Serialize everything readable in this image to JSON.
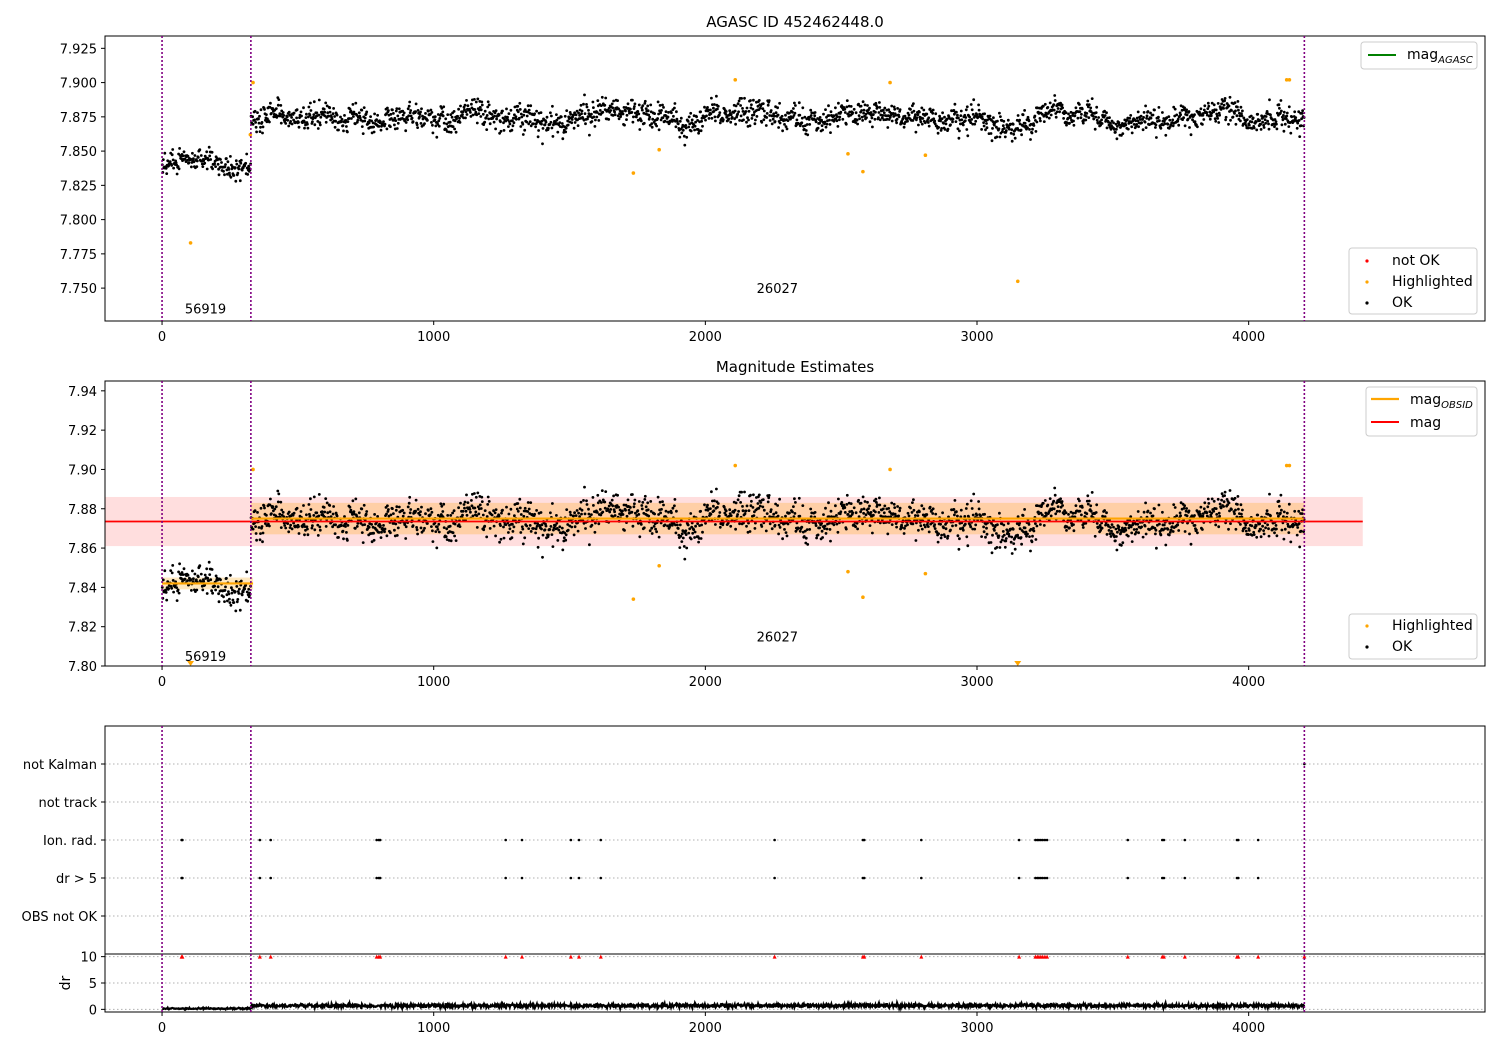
{
  "colors": {
    "ok": "#000000",
    "highlighted": "#ffa500",
    "not_ok": "#ff0000",
    "mag_agasc_line": "#008000",
    "mag_obsid_line": "#ffa500",
    "mag_line": "#ff0000",
    "obsid_boundary": "#800080",
    "grid": "#b0b0b0"
  },
  "chart_data": [
    {
      "type": "scatter",
      "title": "AGASC ID 452462448.0",
      "xlabel": "",
      "ylabel": "",
      "xlim": [
        -210,
        4870
      ],
      "ylim": [
        7.726,
        7.934
      ],
      "xticks": [
        0,
        1000,
        2000,
        3000,
        4000
      ],
      "yticks": [
        7.75,
        7.775,
        7.8,
        7.825,
        7.85,
        7.875,
        7.9,
        7.925
      ],
      "ytick_labels": [
        "7.750",
        "7.775",
        "7.800",
        "7.825",
        "7.850",
        "7.875",
        "7.900",
        "7.925"
      ],
      "obsid_boundaries": [
        0,
        327,
        4205
      ],
      "obsid_labels": [
        {
          "text": "56919",
          "x": 160,
          "y": 7.735
        },
        {
          "text": "26027",
          "x": 2265,
          "y": 7.75
        }
      ],
      "legend_top": {
        "position": "top-right",
        "entries": [
          {
            "label_main": "mag",
            "label_sub": "AGASC",
            "style": "line",
            "color": "#008000"
          }
        ]
      },
      "legend_bottom": {
        "position": "bottom-right",
        "entries": [
          {
            "label": "not OK",
            "style": "dot",
            "color": "#ff0000"
          },
          {
            "label": "Highlighted",
            "style": "dot",
            "color": "#ffa500"
          },
          {
            "label": "OK",
            "style": "dot",
            "color": "#000000"
          }
        ]
      },
      "ok_segments": [
        {
          "x0": 0,
          "x1": 327,
          "center": 7.842,
          "spread": 0.007
        },
        {
          "x0": 327,
          "x1": 4205,
          "center": 7.875,
          "spread": 0.008
        }
      ],
      "highlighted_points": [
        {
          "x": 105,
          "y": 7.783
        },
        {
          "x": 325,
          "y": 7.862
        },
        {
          "x": 335,
          "y": 7.9
        },
        {
          "x": 1735,
          "y": 7.834
        },
        {
          "x": 1830,
          "y": 7.851
        },
        {
          "x": 2110,
          "y": 7.902
        },
        {
          "x": 2525,
          "y": 7.848
        },
        {
          "x": 2580,
          "y": 7.835
        },
        {
          "x": 2680,
          "y": 7.9
        },
        {
          "x": 2810,
          "y": 7.847
        },
        {
          "x": 3150,
          "y": 7.755
        },
        {
          "x": 4140,
          "y": 7.902
        },
        {
          "x": 4150,
          "y": 7.902
        }
      ]
    },
    {
      "type": "scatter",
      "title": "Magnitude Estimates",
      "xlabel": "",
      "ylabel": "",
      "xlim": [
        -210,
        4870
      ],
      "ylim": [
        7.8,
        7.945
      ],
      "xticks": [
        0,
        1000,
        2000,
        3000,
        4000
      ],
      "yticks": [
        7.8,
        7.82,
        7.84,
        7.86,
        7.88,
        7.9,
        7.92,
        7.94
      ],
      "ytick_labels": [
        "7.80",
        "7.82",
        "7.84",
        "7.86",
        "7.88",
        "7.90",
        "7.92",
        "7.94"
      ],
      "obsid_boundaries": [
        0,
        327,
        4205
      ],
      "obsid_labels": [
        {
          "text": "56919",
          "x": 160,
          "y": 7.805
        },
        {
          "text": "26027",
          "x": 2265,
          "y": 7.815
        }
      ],
      "legend_top": {
        "position": "top-right",
        "entries": [
          {
            "label_main": "mag",
            "label_sub": "OBSID",
            "style": "line",
            "color": "#ffa500"
          },
          {
            "label_main": "mag",
            "label_sub": "",
            "style": "line",
            "color": "#ff0000"
          }
        ]
      },
      "legend_bottom": {
        "position": "bottom-right",
        "entries": [
          {
            "label": "Highlighted",
            "style": "dot",
            "color": "#ffa500"
          },
          {
            "label": "OK",
            "style": "dot",
            "color": "#000000"
          }
        ]
      },
      "mag": {
        "value": 7.8735,
        "band": [
          7.861,
          7.886
        ],
        "x0": -210,
        "x1": 4420
      },
      "mag_obsid": [
        {
          "x0": 0,
          "x1": 335,
          "value": 7.842,
          "band": [
            7.839,
            7.845
          ]
        },
        {
          "x0": 327,
          "x1": 4205,
          "value": 7.875,
          "band": [
            7.867,
            7.883
          ]
        }
      ],
      "ok_segments": [
        {
          "x0": 0,
          "x1": 327,
          "center": 7.842,
          "spread": 0.007
        },
        {
          "x0": 327,
          "x1": 4205,
          "center": 7.875,
          "spread": 0.008
        }
      ],
      "highlighted_points": [
        {
          "x": 335,
          "y": 7.9
        },
        {
          "x": 1735,
          "y": 7.834
        },
        {
          "x": 1830,
          "y": 7.851
        },
        {
          "x": 2110,
          "y": 7.902
        },
        {
          "x": 2525,
          "y": 7.848
        },
        {
          "x": 2580,
          "y": 7.835
        },
        {
          "x": 2680,
          "y": 7.9
        },
        {
          "x": 2810,
          "y": 7.847
        },
        {
          "x": 4140,
          "y": 7.902
        },
        {
          "x": 4150,
          "y": 7.902
        }
      ],
      "below_axis_markers": [
        {
          "x": 105
        },
        {
          "x": 3150
        }
      ]
    },
    {
      "type": "scatter",
      "title": "",
      "xlabel": "",
      "ylabel": "",
      "xlim": [
        -210,
        4870
      ],
      "categories": [
        "not Kalman",
        "not track",
        "Ion. rad.",
        "dr > 5",
        "OBS not OK"
      ],
      "obsid_boundaries": [
        0,
        327,
        4205
      ],
      "flag_events": {
        "not Kalman": [
          4205
        ],
        "not track": [],
        "Ion. rad.": [
          72,
          75,
          360,
          400,
          790,
          798,
          803,
          1265,
          1325,
          1505,
          1535,
          1615,
          2255,
          2580,
          2585,
          2795,
          3155,
          3215,
          3222,
          3228,
          3235,
          3242,
          3250,
          3258,
          3555,
          3682,
          3688,
          3765,
          3957,
          3962,
          4035
        ],
        "dr > 5": [
          72,
          75,
          360,
          400,
          790,
          798,
          803,
          1265,
          1325,
          1505,
          1535,
          1615,
          2255,
          2580,
          2585,
          2795,
          3155,
          3215,
          3222,
          3228,
          3235,
          3242,
          3250,
          3258,
          3555,
          3682,
          3688,
          3765,
          3957,
          3962,
          4035
        ]
      }
    },
    {
      "type": "line",
      "title": "",
      "xlabel": "",
      "ylabel": "dr",
      "xlim": [
        -210,
        4870
      ],
      "ylim": [
        -0.5,
        10.5
      ],
      "yticks": [
        0,
        5,
        10
      ],
      "ytick_labels": [
        "0",
        "5",
        "10"
      ],
      "xticks": [
        0,
        1000,
        2000,
        3000,
        4000
      ],
      "obsid_boundaries": [
        0,
        327,
        4205
      ],
      "dr_level_segments": [
        {
          "x0": 0,
          "x1": 327,
          "mean": 0.15,
          "spread": 0.12
        },
        {
          "x0": 327,
          "x1": 4205,
          "mean": 0.7,
          "spread": 0.3
        }
      ],
      "clipped_markers_at": 10,
      "clipped_x": [
        72,
        75,
        360,
        400,
        790,
        798,
        803,
        1265,
        1325,
        1505,
        1535,
        1615,
        2255,
        2580,
        2585,
        2795,
        3155,
        3215,
        3222,
        3228,
        3235,
        3242,
        3250,
        3258,
        3555,
        3682,
        3688,
        3765,
        3957,
        3962,
        4035,
        4205
      ]
    }
  ]
}
